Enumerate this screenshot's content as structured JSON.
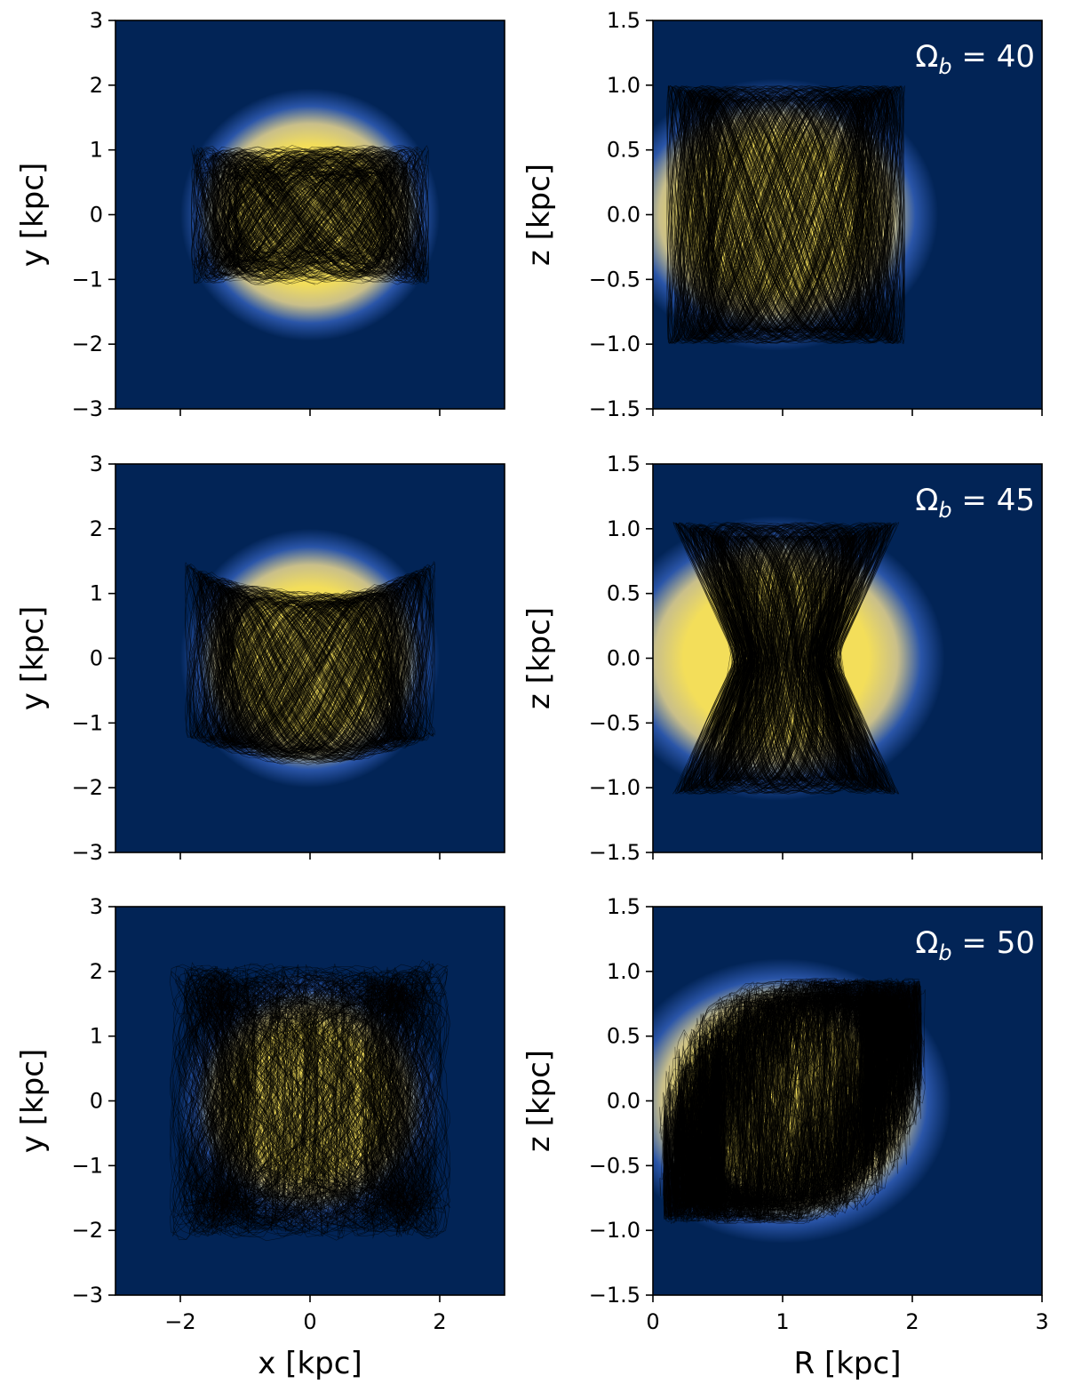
{
  "chart_data": [
    {
      "type": "heatmap",
      "row": 0,
      "col": 0,
      "xlabel": "",
      "ylabel": "y [kpc]",
      "xlim": [
        -3,
        3
      ],
      "ylim": [
        -3,
        3
      ],
      "xticks": [
        -2,
        0,
        2
      ],
      "yticks": [
        -3,
        -2,
        -1,
        0,
        1,
        2,
        3
      ],
      "ytick_labels": [
        "−3",
        "−2",
        "−1",
        "0",
        "1",
        "2",
        "3"
      ],
      "density": {
        "cx": 0,
        "cy": 0,
        "rx": 2.0,
        "ry": 1.95
      },
      "orbits": {
        "family": "bar-xy",
        "a": 1.85,
        "b": 1.05,
        "seed": 11,
        "style": "lemon"
      },
      "annotation": ""
    },
    {
      "type": "heatmap",
      "row": 0,
      "col": 1,
      "xlabel": "",
      "ylabel": "z [kpc]",
      "xlim": [
        0,
        3
      ],
      "ylim": [
        -1.5,
        1.5
      ],
      "xticks": [
        0,
        1,
        2,
        3
      ],
      "yticks": [
        -1.5,
        -1.0,
        -0.5,
        0.0,
        0.5,
        1.0,
        1.5
      ],
      "ytick_labels": [
        "−1.5",
        "−1.0",
        "−0.5",
        "0.0",
        "0.5",
        "1.0",
        "1.5"
      ],
      "density": {
        "cx": 0.95,
        "cy": 0,
        "rx": 1.25,
        "ry": 1.05
      },
      "orbits": {
        "family": "box-rz",
        "r0": 0.1,
        "r1": 1.95,
        "z0": 1.0,
        "seed": 21,
        "style": "box"
      },
      "annotation": "Ωb = 40"
    },
    {
      "type": "heatmap",
      "row": 1,
      "col": 0,
      "xlabel": "",
      "ylabel": "y [kpc]",
      "xlim": [
        -3,
        3
      ],
      "ylim": [
        -3,
        3
      ],
      "xticks": [
        -2,
        0,
        2
      ],
      "yticks": [
        -3,
        -2,
        -1,
        0,
        1,
        2,
        3
      ],
      "ytick_labels": [
        "−3",
        "−2",
        "−1",
        "0",
        "1",
        "2",
        "3"
      ],
      "density": {
        "cx": 0,
        "cy": 0,
        "rx": 2.0,
        "ry": 2.0
      },
      "orbits": {
        "family": "bar-xy",
        "a": 1.95,
        "b": 1.45,
        "seed": 31,
        "style": "smile"
      },
      "annotation": ""
    },
    {
      "type": "heatmap",
      "row": 1,
      "col": 1,
      "xlabel": "",
      "ylabel": "z [kpc]",
      "xlim": [
        0,
        3
      ],
      "ylim": [
        -1.5,
        1.5
      ],
      "xticks": [
        0,
        1,
        2,
        3
      ],
      "yticks": [
        -1.5,
        -1.0,
        -0.5,
        0.0,
        0.5,
        1.0,
        1.5
      ],
      "ytick_labels": [
        "−1.5",
        "−1.0",
        "−0.5",
        "0.0",
        "0.5",
        "1.0",
        "1.5"
      ],
      "density": {
        "cx": 0.95,
        "cy": 0,
        "rx": 1.3,
        "ry": 1.1
      },
      "orbits": {
        "family": "box-rz",
        "r0": 0.15,
        "r1": 1.9,
        "z0": 1.05,
        "seed": 41,
        "style": "hourglass"
      },
      "annotation": "Ωb = 45"
    },
    {
      "type": "heatmap",
      "row": 2,
      "col": 0,
      "xlabel": "x [kpc]",
      "ylabel": "y [kpc]",
      "xlim": [
        -3,
        3
      ],
      "ylim": [
        -3,
        3
      ],
      "xticks": [
        -2,
        0,
        2
      ],
      "yticks": [
        -3,
        -2,
        -1,
        0,
        1,
        2,
        3
      ],
      "xtick_labels": [
        "−2",
        "0",
        "2"
      ],
      "ytick_labels": [
        "−3",
        "−2",
        "−1",
        "0",
        "1",
        "2",
        "3"
      ],
      "density": {
        "cx": 0,
        "cy": 0,
        "rx": 2.05,
        "ry": 2.0
      },
      "orbits": {
        "family": "bar-xy",
        "a": 1.95,
        "b": 1.85,
        "seed": 51,
        "style": "rosette"
      },
      "annotation": ""
    },
    {
      "type": "heatmap",
      "row": 2,
      "col": 1,
      "xlabel": "R [kpc]",
      "ylabel": "z [kpc]",
      "xlim": [
        0,
        3
      ],
      "ylim": [
        -1.5,
        1.5
      ],
      "xticks": [
        0,
        1,
        2,
        3
      ],
      "yticks": [
        -1.5,
        -1.0,
        -0.5,
        0.0,
        0.5,
        1.0,
        1.5
      ],
      "xtick_labels": [
        "0",
        "1",
        "2",
        "3"
      ],
      "ytick_labels": [
        "−1.5",
        "−1.0",
        "−0.5",
        "0.0",
        "0.5",
        "1.0",
        "1.5"
      ],
      "density": {
        "cx": 1.0,
        "cy": 0,
        "rx": 1.3,
        "ry": 1.1
      },
      "orbits": {
        "family": "box-rz",
        "r0": 0.15,
        "r1": 2.0,
        "z0": 1.0,
        "seed": 61,
        "style": "round"
      },
      "annotation": "Ωb = 50"
    }
  ],
  "colors": {
    "background": "#022456",
    "halo": "#2a55a8",
    "core": "#f3de5a",
    "mid": "#c9bf8a",
    "orbit": "#000000"
  }
}
